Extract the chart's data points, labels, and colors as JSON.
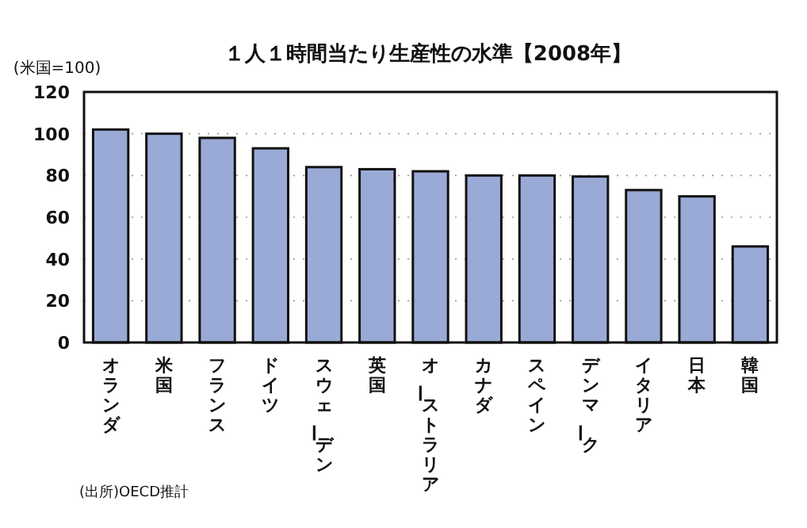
{
  "chart_data": {
    "type": "bar",
    "title": "１人１時間当たり生産性の水準【2008年】",
    "ylabel": "(米国=100)",
    "categories": [
      "オランダ",
      "米国",
      "フランス",
      "ドイツ",
      "スウェーデン",
      "英国",
      "オーストラリア",
      "カナダ",
      "スペイン",
      "デンマーク",
      "イタリア",
      "日本",
      "韓国"
    ],
    "values": [
      102,
      100,
      98,
      93,
      84,
      83,
      82,
      80,
      80,
      79.5,
      73,
      70,
      46
    ],
    "color": "#9aaad6",
    "ylim": [
      0,
      120
    ],
    "yticks": [
      0,
      20,
      40,
      60,
      80,
      100,
      120
    ],
    "grid": "y",
    "annotations": [
      "(出所)OECD推計"
    ]
  }
}
